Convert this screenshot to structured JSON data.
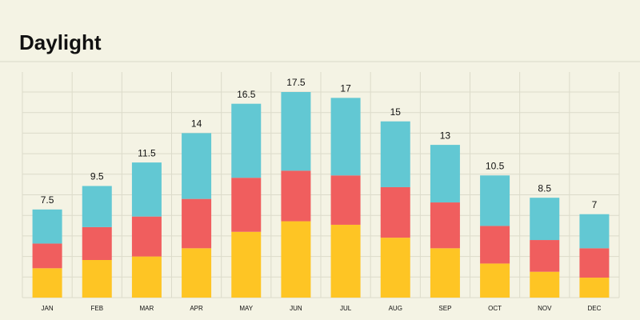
{
  "chart_data": {
    "type": "stacked-bar",
    "title": "Daylight",
    "categories": [
      "JAN",
      "FEB",
      "MAR",
      "APR",
      "MAY",
      "JUN",
      "JUL",
      "AUG",
      "SEP",
      "OCT",
      "NOV",
      "DEC"
    ],
    "series": [
      {
        "color": "#fec524",
        "values": [
          2.5,
          3.2,
          3.5,
          4.2,
          5.6,
          6.5,
          6.2,
          5.1,
          4.2,
          2.9,
          2.2,
          1.7
        ]
      },
      {
        "color": "#f05e5e",
        "values": [
          2.1,
          2.8,
          3.4,
          4.2,
          4.6,
          4.3,
          4.2,
          4.3,
          3.9,
          3.2,
          2.7,
          2.5
        ]
      },
      {
        "color": "#62c8d3",
        "values": [
          2.9,
          3.5,
          4.6,
          5.6,
          6.3,
          6.7,
          6.6,
          5.6,
          4.9,
          4.3,
          3.6,
          2.9
        ]
      }
    ],
    "totals": [
      7.5,
      9.5,
      11.5,
      14,
      16.5,
      17.5,
      17,
      15,
      13,
      10.5,
      8.5,
      7
    ],
    "grid": true
  }
}
